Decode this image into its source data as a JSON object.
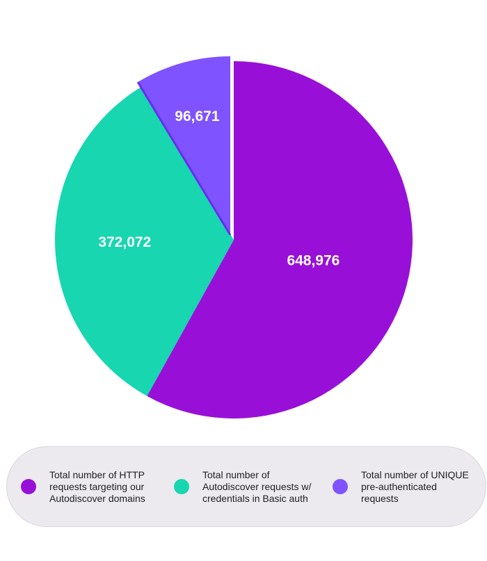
{
  "chart_data": {
    "type": "pie",
    "slices": [
      {
        "label": "Total number of HTTP requests targeting our Autodiscover domains",
        "value": 648976,
        "value_text": "648,976",
        "color": "#9810d8",
        "label_lines": [
          "Total number of HTTP",
          "requests targeting our",
          "Autodiscover domains"
        ]
      },
      {
        "label": "Total number of Autodiscover requests w/ credentials in Basic auth",
        "value": 372072,
        "value_text": "372,072",
        "color": "#17d6b0",
        "label_lines": [
          "Total number of",
          "Autodiscover requests w/",
          "credentials in Basic auth"
        ]
      },
      {
        "label": "Total number of UNIQUE pre-authenticated requests",
        "value": 96671,
        "value_text": "96,671",
        "color": "#7f53ff",
        "label_lines": [
          "Total number of UNIQUE",
          "pre-authenticated",
          "requests"
        ]
      }
    ],
    "legend_position": "bottom",
    "exploded_slice": "Total number of UNIQUE pre-authenticated requests"
  },
  "colors": {
    "separator": "#6a2cf0",
    "legend_background": "#eceaee"
  }
}
